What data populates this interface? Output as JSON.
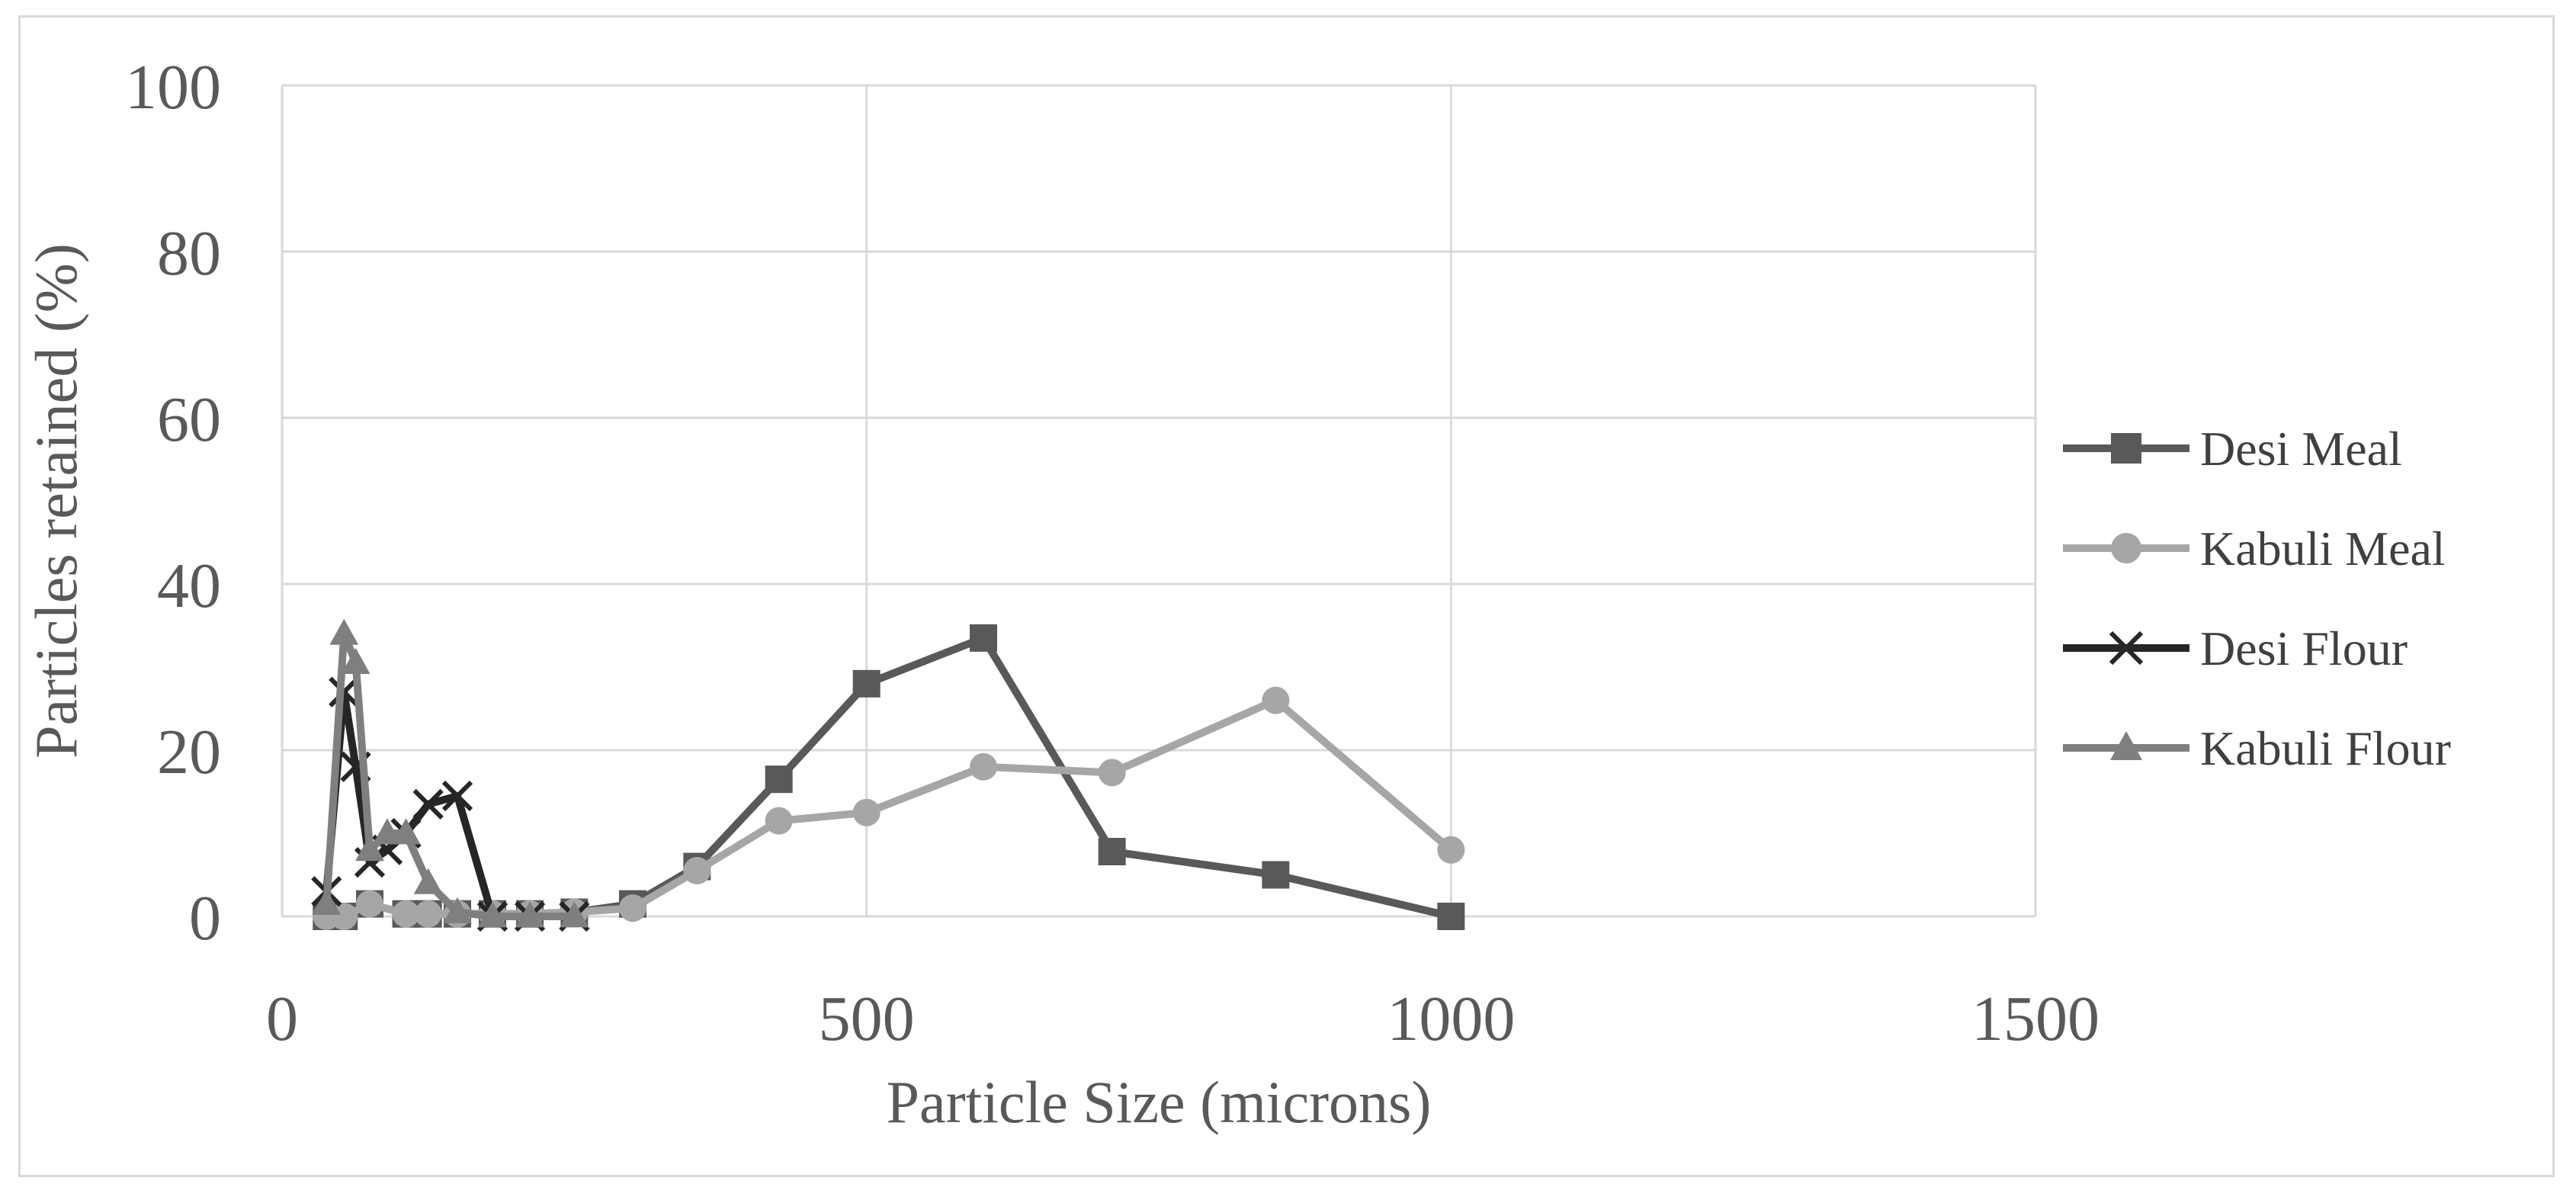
{
  "chart_data": {
    "type": "line",
    "title": "",
    "xlabel": "Particle Size (microns)",
    "ylabel": "Particles retained (%)",
    "xlim": [
      0,
      1500
    ],
    "ylim": [
      0,
      100
    ],
    "x_ticks": [
      0,
      500,
      1000,
      1500
    ],
    "y_ticks": [
      0,
      20,
      40,
      60,
      80,
      100
    ],
    "x_tick_labels": [
      "0",
      "500",
      "1000",
      "1500"
    ],
    "y_tick_labels": [
      "0",
      "20",
      "40",
      "60",
      "80",
      "100"
    ],
    "grid": true,
    "legend_position": "right",
    "series": [
      {
        "name": "Desi Meal",
        "marker": "square",
        "color": "#595959",
        "points": [
          [
            38,
            0
          ],
          [
            53,
            0
          ],
          [
            75,
            1.5
          ],
          [
            106,
            0.3
          ],
          [
            125,
            0.3
          ],
          [
            150,
            0.3
          ],
          [
            180,
            0.3
          ],
          [
            212,
            0.3
          ],
          [
            250,
            0.5
          ],
          [
            300,
            1.5
          ],
          [
            355,
            6
          ],
          [
            425,
            16.5
          ],
          [
            500,
            28
          ],
          [
            600,
            33.5
          ],
          [
            710,
            7.8
          ],
          [
            850,
            5
          ],
          [
            1000,
            0
          ]
        ]
      },
      {
        "name": "Kabuli Meal",
        "marker": "circle",
        "color": "#a6a6a6",
        "points": [
          [
            38,
            0
          ],
          [
            53,
            0
          ],
          [
            75,
            1.5
          ],
          [
            106,
            0.3
          ],
          [
            125,
            0.3
          ],
          [
            150,
            0.3
          ],
          [
            180,
            0.3
          ],
          [
            212,
            0.3
          ],
          [
            250,
            0.5
          ],
          [
            300,
            1
          ],
          [
            355,
            5.5
          ],
          [
            425,
            11.5
          ],
          [
            500,
            12.5
          ],
          [
            600,
            18
          ],
          [
            710,
            17.3
          ],
          [
            850,
            26
          ],
          [
            1000,
            8
          ]
        ]
      },
      {
        "name": "Desi Flour",
        "marker": "x",
        "color": "#262626",
        "points": [
          [
            38,
            3
          ],
          [
            53,
            27
          ],
          [
            63,
            18
          ],
          [
            75,
            6.5
          ],
          [
            90,
            8
          ],
          [
            106,
            10
          ],
          [
            125,
            13.5
          ],
          [
            150,
            14.5
          ],
          [
            180,
            0
          ],
          [
            212,
            0
          ],
          [
            250,
            0
          ]
        ]
      },
      {
        "name": "Kabuli Flour",
        "marker": "triangle",
        "color": "#7f7f7f",
        "points": [
          [
            38,
            1.5
          ],
          [
            53,
            34
          ],
          [
            63,
            30.5
          ],
          [
            75,
            8
          ],
          [
            90,
            10
          ],
          [
            106,
            10
          ],
          [
            125,
            4
          ],
          [
            150,
            0.5
          ],
          [
            180,
            0
          ],
          [
            212,
            0
          ],
          [
            250,
            0
          ]
        ]
      }
    ]
  }
}
